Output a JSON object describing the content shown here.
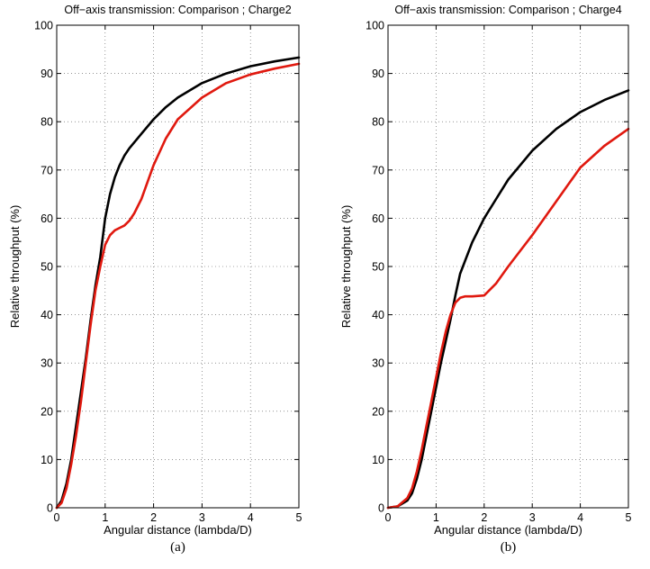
{
  "chart_data": [
    {
      "type": "line",
      "title": "Off−axis transmission: Comparison ; Charge2",
      "xlabel": "Angular distance (lambda/D)",
      "ylabel": "Relative throughput (%)",
      "sublabel": "(a)",
      "xlim": [
        0,
        5
      ],
      "ylim": [
        0,
        100
      ],
      "xticks": [
        "0",
        "1",
        "2",
        "3",
        "4",
        "5"
      ],
      "yticks": [
        "0",
        "10",
        "20",
        "30",
        "40",
        "50",
        "60",
        "70",
        "80",
        "90",
        "100"
      ],
      "grid": true,
      "series": [
        {
          "color": "#000000",
          "x": [
            0,
            0.1,
            0.2,
            0.3,
            0.4,
            0.5,
            0.6,
            0.7,
            0.8,
            0.9,
            1.0,
            1.1,
            1.2,
            1.3,
            1.4,
            1.5,
            1.75,
            2.0,
            2.25,
            2.5,
            3.0,
            3.5,
            4.0,
            4.5,
            5.0
          ],
          "y": [
            0,
            1.5,
            5,
            10,
            17,
            24,
            31,
            39,
            46,
            52,
            60,
            65,
            68.5,
            71,
            73,
            74.5,
            77.5,
            80.5,
            83,
            85,
            88,
            90,
            91.5,
            92.5,
            93.3
          ]
        },
        {
          "color": "#e0190f",
          "x": [
            0,
            0.1,
            0.2,
            0.3,
            0.4,
            0.5,
            0.6,
            0.7,
            0.8,
            0.9,
            1.0,
            1.1,
            1.2,
            1.3,
            1.4,
            1.5,
            1.6,
            1.75,
            2.0,
            2.25,
            2.5,
            3.0,
            3.5,
            4.0,
            4.5,
            5.0
          ],
          "y": [
            0,
            1,
            4,
            9,
            15,
            22,
            30,
            38,
            45,
            50,
            54.5,
            56.5,
            57.5,
            58,
            58.5,
            59.5,
            61,
            64,
            71,
            76.5,
            80.5,
            85,
            88,
            89.8,
            91,
            92
          ]
        }
      ]
    },
    {
      "type": "line",
      "title": "Off−axis transmission: Comparison ; Charge4",
      "xlabel": "Angular distance (lambda/D)",
      "ylabel": "Relative throughput (%)",
      "sublabel": "(b)",
      "xlim": [
        0,
        5
      ],
      "ylim": [
        0,
        100
      ],
      "xticks": [
        "0",
        "1",
        "2",
        "3",
        "4",
        "5"
      ],
      "yticks": [
        "0",
        "10",
        "20",
        "30",
        "40",
        "50",
        "60",
        "70",
        "80",
        "90",
        "100"
      ],
      "grid": true,
      "series": [
        {
          "color": "#000000",
          "x": [
            0,
            0.2,
            0.4,
            0.5,
            0.6,
            0.7,
            0.8,
            0.9,
            1.0,
            1.1,
            1.2,
            1.3,
            1.4,
            1.5,
            1.75,
            2.0,
            2.25,
            2.5,
            3.0,
            3.5,
            4.0,
            4.5,
            5.0
          ],
          "y": [
            0,
            0.3,
            1.5,
            3,
            6,
            10,
            15,
            20,
            25,
            30,
            34.5,
            39,
            44,
            48.5,
            55,
            60,
            64,
            68,
            74,
            78.5,
            82,
            84.5,
            86.5
          ]
        },
        {
          "color": "#e0190f",
          "x": [
            0,
            0.2,
            0.4,
            0.5,
            0.6,
            0.7,
            0.8,
            0.9,
            1.0,
            1.1,
            1.2,
            1.3,
            1.4,
            1.5,
            1.6,
            1.75,
            2.0,
            2.25,
            2.5,
            3.0,
            3.5,
            4.0,
            4.5,
            5.0
          ],
          "y": [
            0,
            0.3,
            2,
            4,
            7.5,
            12,
            17,
            22,
            27,
            32,
            36.5,
            40,
            42.5,
            43.5,
            43.8,
            43.8,
            44,
            46.5,
            50,
            56.5,
            63.5,
            70.5,
            75,
            78.5
          ]
        }
      ]
    }
  ]
}
